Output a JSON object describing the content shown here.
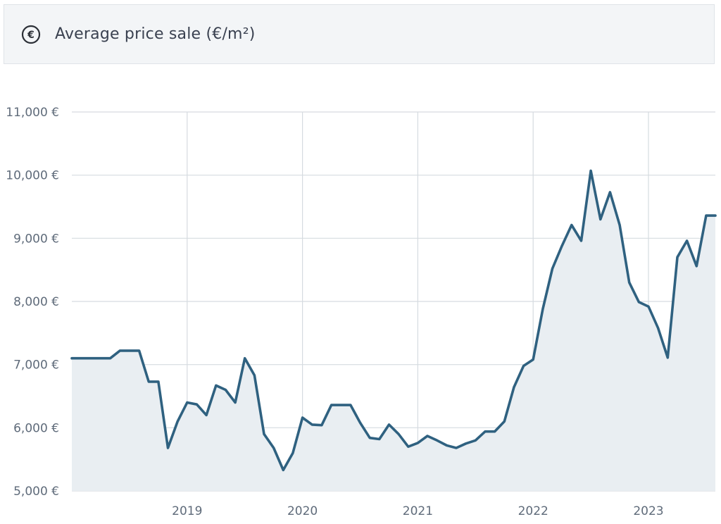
{
  "header": {
    "title": "Average price sale (€/m²)",
    "icon": "euro-circle-icon"
  },
  "colors": {
    "line": "#2f6180",
    "area": "#e9eef2",
    "grid": "#d6dbe0",
    "text": "#5f6b7a",
    "header_bg": "#f3f5f7"
  },
  "chart_data": {
    "type": "area",
    "title": "Average price sale (€/m²)",
    "xlabel": "",
    "ylabel": "",
    "ylim": [
      5000,
      11000
    ],
    "xlim": [
      "2018-01",
      "2023-07"
    ],
    "y_ticks": [
      {
        "value": 5000,
        "label": "5,000 €"
      },
      {
        "value": 6000,
        "label": "6,000 €"
      },
      {
        "value": 7000,
        "label": "7,000 €"
      },
      {
        "value": 8000,
        "label": "8,000 €"
      },
      {
        "value": 9000,
        "label": "9,000 €"
      },
      {
        "value": 10000,
        "label": "10,000 €"
      },
      {
        "value": 11000,
        "label": "11,000 €"
      }
    ],
    "x_ticks": [
      {
        "value": "2019-01",
        "label": "2019"
      },
      {
        "value": "2020-01",
        "label": "2020"
      },
      {
        "value": "2021-01",
        "label": "2021"
      },
      {
        "value": "2022-01",
        "label": "2022"
      },
      {
        "value": "2023-01",
        "label": "2023"
      }
    ],
    "grid": true,
    "series": [
      {
        "x": [
          "2018-01",
          "2018-02",
          "2018-03",
          "2018-04",
          "2018-05",
          "2018-06",
          "2018-07",
          "2018-08",
          "2018-09",
          "2018-10",
          "2018-11",
          "2018-12",
          "2019-01",
          "2019-02",
          "2019-03",
          "2019-04",
          "2019-05",
          "2019-06",
          "2019-07",
          "2019-08",
          "2019-09",
          "2019-10",
          "2019-11",
          "2019-12",
          "2020-01",
          "2020-02",
          "2020-03",
          "2020-04",
          "2020-05",
          "2020-06",
          "2020-07",
          "2020-08",
          "2020-09",
          "2020-10",
          "2020-11",
          "2020-12",
          "2021-01",
          "2021-02",
          "2021-03",
          "2021-04",
          "2021-05",
          "2021-06",
          "2021-07",
          "2021-08",
          "2021-09",
          "2021-10",
          "2021-11",
          "2021-12",
          "2022-01",
          "2022-02",
          "2022-03",
          "2022-04",
          "2022-05",
          "2022-06",
          "2022-07",
          "2022-08",
          "2022-09",
          "2022-10",
          "2022-11",
          "2022-12",
          "2023-01",
          "2023-02",
          "2023-03",
          "2023-04",
          "2023-05",
          "2023-06",
          "2023-07"
        ],
        "values": [
          7100,
          7100,
          7100,
          7100,
          7100,
          7220,
          7220,
          7220,
          6730,
          6730,
          5680,
          6100,
          6400,
          6370,
          6200,
          6670,
          6600,
          6400,
          7100,
          6830,
          5900,
          5680,
          5330,
          5600,
          6160,
          6050,
          6040,
          6360,
          6360,
          6360,
          6080,
          5840,
          5820,
          6050,
          5900,
          5700,
          5760,
          5870,
          5800,
          5720,
          5680,
          5750,
          5800,
          5940,
          5940,
          6100,
          6640,
          6980,
          7080,
          7880,
          8520,
          8880,
          9210,
          8960,
          10070,
          9300,
          9730,
          9210,
          8300,
          7990,
          7920,
          7580,
          7110,
          8700,
          8960,
          8560,
          9360
        ],
        "end_value": 9360
      }
    ]
  }
}
